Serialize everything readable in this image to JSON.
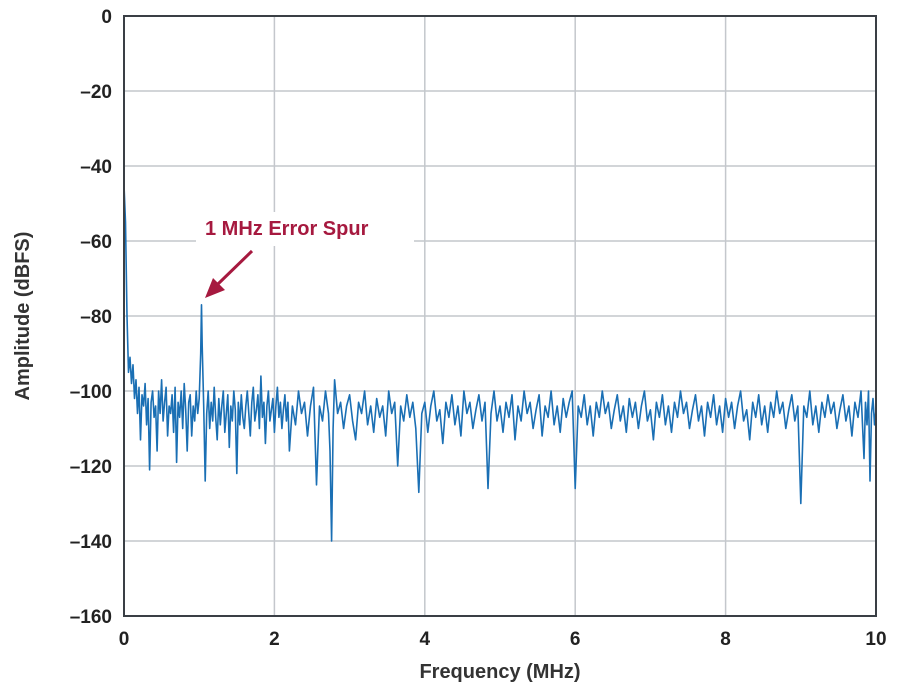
{
  "colors": {
    "series": "#1a6fb4",
    "annotation": "#a6193f",
    "grid": "#c4c7cc",
    "frame": "#3a3f45",
    "background": "#ffffff"
  },
  "chart_data": {
    "type": "line",
    "xlabel": "Frequency (MHz)",
    "ylabel": "Amplitude (dBFS)",
    "xlim": [
      0,
      10
    ],
    "ylim": [
      -160,
      0
    ],
    "grid": true,
    "x_ticks": [
      0,
      2,
      4,
      6,
      8,
      10
    ],
    "x_tick_labels": [
      "0",
      "2",
      "4",
      "6",
      "8",
      "10"
    ],
    "y_ticks": [
      0,
      -20,
      -40,
      -60,
      -80,
      -100,
      -120,
      -140,
      -160
    ],
    "y_tick_labels": [
      "0",
      "–20",
      "–40",
      "–60",
      "–80",
      "–100",
      "–120",
      "–140",
      "–160"
    ],
    "annotation": {
      "text": "1 MHz Error Spur",
      "points_to": {
        "x": 1.03,
        "y": -77
      },
      "color": "#a6193f"
    },
    "series": [
      {
        "points": [
          [
            0.0,
            -45
          ],
          [
            0.02,
            -55
          ],
          [
            0.04,
            -80
          ],
          [
            0.06,
            -95
          ],
          [
            0.08,
            -91
          ],
          [
            0.1,
            -98
          ],
          [
            0.12,
            -93
          ],
          [
            0.14,
            -102
          ],
          [
            0.16,
            -97
          ],
          [
            0.18,
            -106
          ],
          [
            0.2,
            -99
          ],
          [
            0.22,
            -113
          ],
          [
            0.24,
            -101
          ],
          [
            0.26,
            -104
          ],
          [
            0.28,
            -98
          ],
          [
            0.3,
            -109
          ],
          [
            0.32,
            -102
          ],
          [
            0.34,
            -121
          ],
          [
            0.36,
            -103
          ],
          [
            0.38,
            -100
          ],
          [
            0.4,
            -107
          ],
          [
            0.42,
            -104
          ],
          [
            0.44,
            -116
          ],
          [
            0.46,
            -100
          ],
          [
            0.48,
            -106
          ],
          [
            0.5,
            -97
          ],
          [
            0.52,
            -108
          ],
          [
            0.54,
            -103
          ],
          [
            0.56,
            -99
          ],
          [
            0.58,
            -112
          ],
          [
            0.6,
            -104
          ],
          [
            0.62,
            -106
          ],
          [
            0.64,
            -101
          ],
          [
            0.66,
            -111
          ],
          [
            0.68,
            -99
          ],
          [
            0.7,
            -119
          ],
          [
            0.72,
            -103
          ],
          [
            0.74,
            -107
          ],
          [
            0.76,
            -100
          ],
          [
            0.78,
            -110
          ],
          [
            0.8,
            -98
          ],
          [
            0.82,
            -105
          ],
          [
            0.84,
            -116
          ],
          [
            0.86,
            -103
          ],
          [
            0.88,
            -101
          ],
          [
            0.9,
            -112
          ],
          [
            0.92,
            -104
          ],
          [
            0.94,
            -108
          ],
          [
            0.96,
            -100
          ],
          [
            0.98,
            -106
          ],
          [
            1.0,
            -102
          ],
          [
            1.02,
            -90
          ],
          [
            1.03,
            -77
          ],
          [
            1.04,
            -88
          ],
          [
            1.06,
            -104
          ],
          [
            1.08,
            -124
          ],
          [
            1.1,
            -106
          ],
          [
            1.12,
            -100
          ],
          [
            1.14,
            -110
          ],
          [
            1.16,
            -103
          ],
          [
            1.18,
            -108
          ],
          [
            1.2,
            -99
          ],
          [
            1.22,
            -107
          ],
          [
            1.24,
            -113
          ],
          [
            1.26,
            -102
          ],
          [
            1.28,
            -109
          ],
          [
            1.3,
            -104
          ],
          [
            1.32,
            -100
          ],
          [
            1.34,
            -111
          ],
          [
            1.36,
            -106
          ],
          [
            1.38,
            -101
          ],
          [
            1.4,
            -115
          ],
          [
            1.42,
            -104
          ],
          [
            1.44,
            -108
          ],
          [
            1.46,
            -100
          ],
          [
            1.48,
            -105
          ],
          [
            1.5,
            -122
          ],
          [
            1.52,
            -103
          ],
          [
            1.54,
            -109
          ],
          [
            1.56,
            -101
          ],
          [
            1.58,
            -107
          ],
          [
            1.6,
            -110
          ],
          [
            1.62,
            -104
          ],
          [
            1.64,
            -100
          ],
          [
            1.66,
            -106
          ],
          [
            1.68,
            -112
          ],
          [
            1.7,
            -103
          ],
          [
            1.72,
            -99
          ],
          [
            1.74,
            -108
          ],
          [
            1.76,
            -105
          ],
          [
            1.78,
            -101
          ],
          [
            1.8,
            -110
          ],
          [
            1.82,
            -96
          ],
          [
            1.84,
            -107
          ],
          [
            1.86,
            -103
          ],
          [
            1.88,
            -114
          ],
          [
            1.9,
            -104
          ],
          [
            1.92,
            -100
          ],
          [
            1.94,
            -108
          ],
          [
            1.96,
            -105
          ],
          [
            1.98,
            -102
          ],
          [
            2.0,
            -111
          ],
          [
            2.02,
            -104
          ],
          [
            2.04,
            -99
          ],
          [
            2.06,
            -107
          ],
          [
            2.08,
            -103
          ],
          [
            2.1,
            -110
          ],
          [
            2.12,
            -105
          ],
          [
            2.14,
            -101
          ],
          [
            2.16,
            -108
          ],
          [
            2.18,
            -103
          ],
          [
            2.2,
            -116
          ],
          [
            2.24,
            -104
          ],
          [
            2.28,
            -109
          ],
          [
            2.32,
            -100
          ],
          [
            2.36,
            -106
          ],
          [
            2.4,
            -103
          ],
          [
            2.44,
            -112
          ],
          [
            2.48,
            -104
          ],
          [
            2.52,
            -99
          ],
          [
            2.56,
            -125
          ],
          [
            2.6,
            -104
          ],
          [
            2.64,
            -108
          ],
          [
            2.68,
            -100
          ],
          [
            2.72,
            -106
          ],
          [
            2.74,
            -116
          ],
          [
            2.76,
            -140
          ],
          [
            2.78,
            -110
          ],
          [
            2.8,
            -97
          ],
          [
            2.84,
            -106
          ],
          [
            2.88,
            -103
          ],
          [
            2.92,
            -110
          ],
          [
            2.96,
            -104
          ],
          [
            3.0,
            -101
          ],
          [
            3.04,
            -108
          ],
          [
            3.08,
            -113
          ],
          [
            3.12,
            -103
          ],
          [
            3.16,
            -106
          ],
          [
            3.2,
            -100
          ],
          [
            3.24,
            -109
          ],
          [
            3.28,
            -104
          ],
          [
            3.32,
            -111
          ],
          [
            3.36,
            -102
          ],
          [
            3.4,
            -107
          ],
          [
            3.44,
            -104
          ],
          [
            3.48,
            -112
          ],
          [
            3.52,
            -100
          ],
          [
            3.56,
            -106
          ],
          [
            3.6,
            -103
          ],
          [
            3.64,
            -120
          ],
          [
            3.68,
            -104
          ],
          [
            3.72,
            -108
          ],
          [
            3.76,
            -101
          ],
          [
            3.8,
            -107
          ],
          [
            3.84,
            -103
          ],
          [
            3.88,
            -110
          ],
          [
            3.92,
            -127
          ],
          [
            3.96,
            -106
          ],
          [
            4.0,
            -103
          ],
          [
            4.04,
            -111
          ],
          [
            4.08,
            -104
          ],
          [
            4.12,
            -100
          ],
          [
            4.16,
            -108
          ],
          [
            4.2,
            -105
          ],
          [
            4.24,
            -114
          ],
          [
            4.28,
            -103
          ],
          [
            4.32,
            -107
          ],
          [
            4.36,
            -101
          ],
          [
            4.4,
            -109
          ],
          [
            4.44,
            -104
          ],
          [
            4.48,
            -112
          ],
          [
            4.52,
            -100
          ],
          [
            4.56,
            -106
          ],
          [
            4.6,
            -103
          ],
          [
            4.64,
            -110
          ],
          [
            4.68,
            -105
          ],
          [
            4.72,
            -101
          ],
          [
            4.76,
            -108
          ],
          [
            4.8,
            -103
          ],
          [
            4.84,
            -126
          ],
          [
            4.88,
            -106
          ],
          [
            4.92,
            -100
          ],
          [
            4.96,
            -108
          ],
          [
            5.0,
            -104
          ],
          [
            5.04,
            -111
          ],
          [
            5.08,
            -103
          ],
          [
            5.12,
            -107
          ],
          [
            5.16,
            -101
          ],
          [
            5.2,
            -113
          ],
          [
            5.24,
            -104
          ],
          [
            5.28,
            -108
          ],
          [
            5.32,
            -100
          ],
          [
            5.36,
            -106
          ],
          [
            5.4,
            -103
          ],
          [
            5.44,
            -110
          ],
          [
            5.48,
            -105
          ],
          [
            5.52,
            -101
          ],
          [
            5.56,
            -112
          ],
          [
            5.6,
            -104
          ],
          [
            5.64,
            -107
          ],
          [
            5.68,
            -100
          ],
          [
            5.72,
            -109
          ],
          [
            5.76,
            -104
          ],
          [
            5.8,
            -111
          ],
          [
            5.84,
            -102
          ],
          [
            5.88,
            -107
          ],
          [
            5.92,
            -103
          ],
          [
            5.96,
            -100
          ],
          [
            6.0,
            -126
          ],
          [
            6.04,
            -104
          ],
          [
            6.08,
            -107
          ],
          [
            6.12,
            -101
          ],
          [
            6.16,
            -109
          ],
          [
            6.2,
            -104
          ],
          [
            6.24,
            -112
          ],
          [
            6.28,
            -103
          ],
          [
            6.32,
            -107
          ],
          [
            6.36,
            -100
          ],
          [
            6.4,
            -106
          ],
          [
            6.44,
            -103
          ],
          [
            6.48,
            -110
          ],
          [
            6.52,
            -105
          ],
          [
            6.56,
            -101
          ],
          [
            6.6,
            -108
          ],
          [
            6.64,
            -104
          ],
          [
            6.68,
            -111
          ],
          [
            6.72,
            -102
          ],
          [
            6.76,
            -107
          ],
          [
            6.8,
            -103
          ],
          [
            6.84,
            -110
          ],
          [
            6.88,
            -104
          ],
          [
            6.92,
            -100
          ],
          [
            6.96,
            -108
          ],
          [
            7.0,
            -105
          ],
          [
            7.04,
            -113
          ],
          [
            7.08,
            -103
          ],
          [
            7.12,
            -107
          ],
          [
            7.16,
            -101
          ],
          [
            7.2,
            -109
          ],
          [
            7.24,
            -104
          ],
          [
            7.28,
            -111
          ],
          [
            7.32,
            -103
          ],
          [
            7.36,
            -107
          ],
          [
            7.4,
            -100
          ],
          [
            7.44,
            -106
          ],
          [
            7.48,
            -103
          ],
          [
            7.52,
            -110
          ],
          [
            7.56,
            -105
          ],
          [
            7.6,
            -101
          ],
          [
            7.64,
            -108
          ],
          [
            7.68,
            -104
          ],
          [
            7.72,
            -112
          ],
          [
            7.76,
            -103
          ],
          [
            7.8,
            -107
          ],
          [
            7.84,
            -101
          ],
          [
            7.88,
            -109
          ],
          [
            7.92,
            -104
          ],
          [
            7.96,
            -111
          ],
          [
            8.0,
            -102
          ],
          [
            8.04,
            -107
          ],
          [
            8.08,
            -103
          ],
          [
            8.12,
            -110
          ],
          [
            8.16,
            -104
          ],
          [
            8.2,
            -100
          ],
          [
            8.24,
            -108
          ],
          [
            8.28,
            -105
          ],
          [
            8.32,
            -113
          ],
          [
            8.36,
            -103
          ],
          [
            8.4,
            -107
          ],
          [
            8.44,
            -101
          ],
          [
            8.48,
            -109
          ],
          [
            8.52,
            -104
          ],
          [
            8.56,
            -111
          ],
          [
            8.6,
            -103
          ],
          [
            8.64,
            -107
          ],
          [
            8.68,
            -100
          ],
          [
            8.72,
            -106
          ],
          [
            8.76,
            -103
          ],
          [
            8.8,
            -110
          ],
          [
            8.84,
            -105
          ],
          [
            8.88,
            -101
          ],
          [
            8.92,
            -108
          ],
          [
            8.96,
            -104
          ],
          [
            9.0,
            -130
          ],
          [
            9.04,
            -104
          ],
          [
            9.08,
            -107
          ],
          [
            9.12,
            -100
          ],
          [
            9.16,
            -109
          ],
          [
            9.2,
            -104
          ],
          [
            9.24,
            -111
          ],
          [
            9.28,
            -103
          ],
          [
            9.32,
            -107
          ],
          [
            9.36,
            -101
          ],
          [
            9.4,
            -106
          ],
          [
            9.44,
            -103
          ],
          [
            9.48,
            -110
          ],
          [
            9.52,
            -105
          ],
          [
            9.56,
            -101
          ],
          [
            9.6,
            -108
          ],
          [
            9.64,
            -104
          ],
          [
            9.68,
            -112
          ],
          [
            9.72,
            -103
          ],
          [
            9.76,
            -107
          ],
          [
            9.8,
            -100
          ],
          [
            9.84,
            -118
          ],
          [
            9.86,
            -103
          ],
          [
            9.88,
            -109
          ],
          [
            9.9,
            -100
          ],
          [
            9.92,
            -124
          ],
          [
            9.94,
            -106
          ],
          [
            9.96,
            -102
          ],
          [
            9.98,
            -109
          ],
          [
            10.0,
            -105
          ]
        ]
      }
    ]
  }
}
